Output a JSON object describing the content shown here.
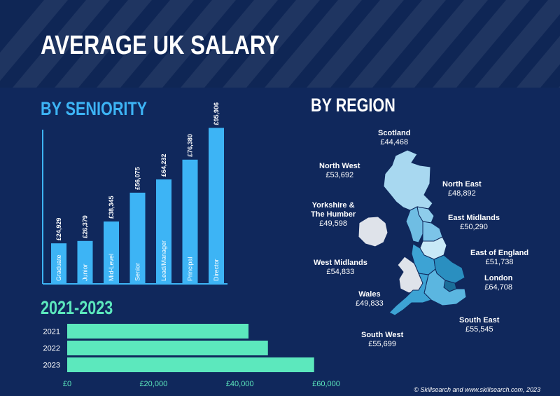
{
  "title": "AVERAGE UK SALARY",
  "colors": {
    "background": "#10285c",
    "bar_blue": "#3db4f5",
    "bar_green": "#5ce8bd",
    "heading_blue": "#3db4f5",
    "heading_green": "#5ce8bd"
  },
  "headings": {
    "seniority": "BY SENIORITY",
    "region": "BY REGION",
    "years": "2021-2023"
  },
  "chart_data": [
    {
      "type": "bar",
      "title": "BY SENIORITY",
      "orientation": "vertical",
      "categories": [
        "Graduate",
        "Junior",
        "Mid-Level",
        "Senior",
        "Lead/Manager",
        "Principal",
        "Director"
      ],
      "values": [
        24929,
        26379,
        38345,
        56075,
        64232,
        76380,
        95906
      ],
      "value_labels": [
        "£24,929",
        "£26,379",
        "£38,345",
        "£56,075",
        "£64,232",
        "£76,380",
        "£95,906"
      ],
      "ylim": [
        0,
        100000
      ]
    },
    {
      "type": "bar",
      "title": "2021-2023",
      "orientation": "horizontal",
      "categories": [
        "2021",
        "2022",
        "2023"
      ],
      "values": [
        42000,
        46500,
        57200
      ],
      "ticks": [
        0,
        20000,
        40000,
        60000
      ],
      "tick_labels": [
        "£0",
        "£20,000",
        "£40,000",
        "£60,000"
      ],
      "xlim": [
        0,
        60000
      ]
    }
  ],
  "regions": [
    {
      "name": "Scotland",
      "salary": "£44,468"
    },
    {
      "name": "North West",
      "salary": "£53,692"
    },
    {
      "name": "North East",
      "salary": "£48,892"
    },
    {
      "name": "Yorkshire &",
      "name2": "The Humber",
      "salary": "£49,598"
    },
    {
      "name": "East Midlands",
      "salary": "£50,290"
    },
    {
      "name": "West Midlands",
      "salary": "£54,833"
    },
    {
      "name": "East of England",
      "salary": "£51,738"
    },
    {
      "name": "London",
      "salary": "£64,708"
    },
    {
      "name": "Wales",
      "salary": "£49,833"
    },
    {
      "name": "South East",
      "salary": "£55,545"
    },
    {
      "name": "South West",
      "salary": "£55,699"
    }
  ],
  "copyright": "© Skillsearch and www.skillsearch.com, 2023"
}
